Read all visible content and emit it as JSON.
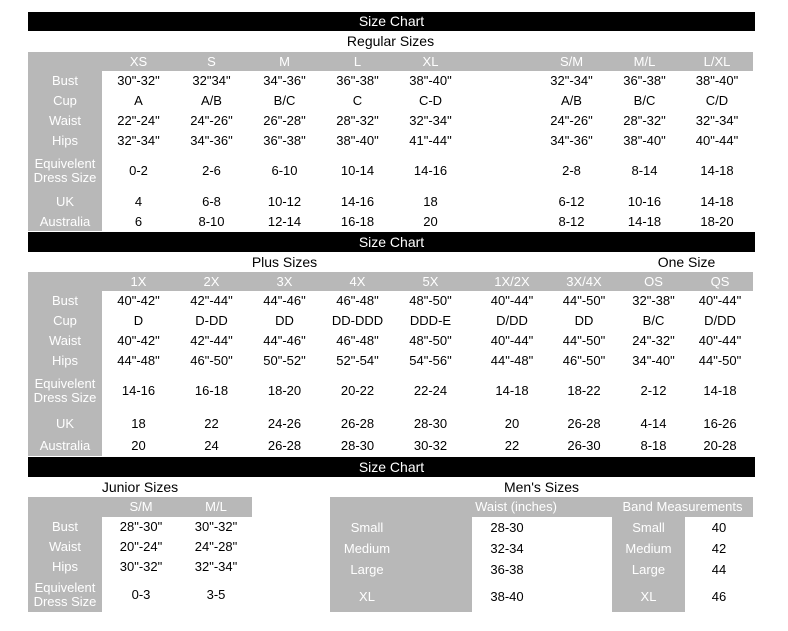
{
  "colors": {
    "bar_background": "#000000",
    "bar_text": "#ffffff",
    "header_background": "#b8b8b8",
    "header_text": "#ffffff",
    "value_text": "#000000",
    "page_background": "#ffffff"
  },
  "sections": {
    "regular": {
      "bar_title": "Size Chart",
      "title": "Regular Sizes",
      "columns": [
        "XS",
        "S",
        "M",
        "L",
        "XL",
        "S/M",
        "M/L",
        "L/XL"
      ],
      "rows": [
        {
          "label": "Bust",
          "values": [
            "30\"-32\"",
            "32\"34\"",
            "34\"-36\"",
            "36\"-38\"",
            "38\"-40\"",
            "32\"-34\"",
            "36\"-38\"",
            "38\"-40\""
          ]
        },
        {
          "label": "Cup",
          "values": [
            "A",
            "A/B",
            "B/C",
            "C",
            "C-D",
            "A/B",
            "B/C",
            "C/D"
          ]
        },
        {
          "label": "Waist",
          "values": [
            "22\"-24\"",
            "24\"-26\"",
            "26\"-28\"",
            "28\"-32\"",
            "32\"-34\"",
            "24\"-26\"",
            "28\"-32\"",
            "32\"-34\""
          ]
        },
        {
          "label": "Hips",
          "values": [
            "32\"-34\"",
            "34\"-36\"",
            "36\"-38\"",
            "38\"-40\"",
            "41\"-44\"",
            "34\"-36\"",
            "38\"-40\"",
            "40\"-44\""
          ]
        },
        {
          "label": "Equivelent Dress Size",
          "values": [
            "0-2",
            "2-6",
            "6-10",
            "10-14",
            "14-16",
            "2-8",
            "8-14",
            "14-18"
          ]
        },
        {
          "label": "UK",
          "values": [
            "4",
            "6-8",
            "10-12",
            "14-16",
            "18",
            "6-12",
            "10-16",
            "14-18"
          ]
        },
        {
          "label": "Australia",
          "values": [
            "6",
            "8-10",
            "12-14",
            "16-18",
            "20",
            "8-12",
            "14-18",
            "18-20"
          ]
        }
      ]
    },
    "plus": {
      "bar_title": "Size Chart",
      "title": "Plus Sizes",
      "one_size_title": "One Size",
      "columns": [
        "1X",
        "2X",
        "3X",
        "4X",
        "5X",
        "1X/2X",
        "3X/4X",
        "OS",
        "QS"
      ],
      "rows": [
        {
          "label": "Bust",
          "values": [
            "40\"-42\"",
            "42\"-44\"",
            "44\"-46\"",
            "46\"-48\"",
            "48\"-50\"",
            "40\"-44\"",
            "44\"-50\"",
            "32\"-38\"",
            "40\"-44\""
          ]
        },
        {
          "label": "Cup",
          "values": [
            "D",
            "D-DD",
            "DD",
            "DD-DDD",
            "DDD-E",
            "D/DD",
            "DD",
            "B/C",
            "D/DD"
          ]
        },
        {
          "label": "Waist",
          "values": [
            "40\"-42\"",
            "42\"-44\"",
            "44\"-46\"",
            "46\"-48\"",
            "48\"-50\"",
            "40\"-44\"",
            "44\"-50\"",
            "24\"-32\"",
            "40\"-44\""
          ]
        },
        {
          "label": "Hips",
          "values": [
            "44\"-48\"",
            "46\"-50\"",
            "50\"-52\"",
            "52\"-54\"",
            "54\"-56\"",
            "44\"-48\"",
            "46\"-50\"",
            "34\"-40\"",
            "44\"-50\""
          ]
        },
        {
          "label": "Equivelent Dress Size",
          "values": [
            "14-16",
            "16-18",
            "18-20",
            "20-22",
            "22-24",
            "14-18",
            "18-22",
            "2-12",
            "14-18"
          ]
        },
        {
          "label": "UK",
          "values": [
            "18",
            "22",
            "24-26",
            "26-28",
            "28-30",
            "20",
            "26-28",
            "4-14",
            "16-26"
          ]
        },
        {
          "label": "Australia",
          "values": [
            "20",
            "24",
            "26-28",
            "28-30",
            "30-32",
            "22",
            "26-30",
            "8-18",
            "20-28"
          ]
        }
      ]
    },
    "bottom": {
      "bar_title": "Size Chart",
      "junior": {
        "title": "Junior Sizes",
        "columns": [
          "S/M",
          "M/L"
        ],
        "rows": [
          {
            "label": "Bust",
            "values": [
              "28\"-30\"",
              "30\"-32\""
            ]
          },
          {
            "label": "Waist",
            "values": [
              "20\"-24\"",
              "24\"-28\""
            ]
          },
          {
            "label": "Hips",
            "values": [
              "30\"-32\"",
              "32\"-34\""
            ]
          },
          {
            "label": "Equivelent Dress Size",
            "values": [
              "0-3",
              "3-5"
            ]
          }
        ]
      },
      "mens": {
        "title": "Men's Sizes",
        "waist_header": "Waist (inches)",
        "band_header": "Band Measurements",
        "rows": [
          {
            "size": "Small",
            "waist": "28-30",
            "band_size": "Small",
            "band_value": "40"
          },
          {
            "size": "Medium",
            "waist": "32-34",
            "band_size": "Medium",
            "band_value": "42"
          },
          {
            "size": "Large",
            "waist": "36-38",
            "band_size": "Large",
            "band_value": "44"
          },
          {
            "size": "XL",
            "waist": "38-40",
            "band_size": "XL",
            "band_value": "46"
          }
        ]
      }
    }
  }
}
